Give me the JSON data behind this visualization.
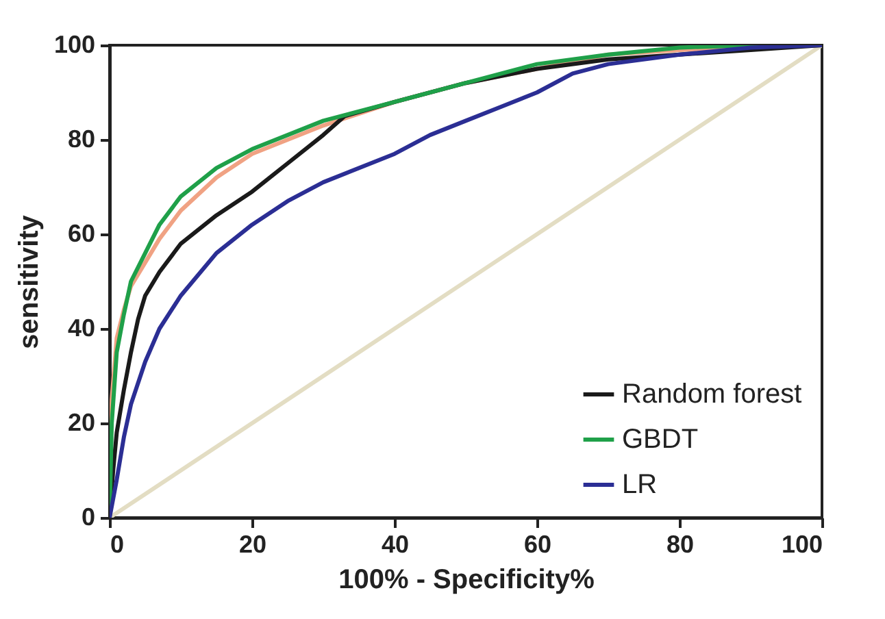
{
  "chart_data": {
    "type": "line",
    "xlabel": "100%  - Specificity%",
    "ylabel": "sensitivity",
    "xlim": [
      0,
      100
    ],
    "ylim": [
      0,
      100
    ],
    "xticks": [
      0,
      20,
      40,
      60,
      80,
      100
    ],
    "yticks": [
      0,
      20,
      40,
      60,
      80,
      100
    ],
    "grid": false,
    "legend": "bottom right",
    "marker": "none",
    "line_style": "solid",
    "series": [
      {
        "name": "Random forest",
        "color": "#1a1a1a",
        "x": [
          0,
          0.5,
          1,
          2,
          3,
          4,
          5,
          7,
          10,
          15,
          20,
          25,
          30,
          33,
          40,
          50,
          60,
          70,
          80,
          90,
          100
        ],
        "values": [
          0,
          10,
          18,
          27,
          35,
          42,
          47,
          52,
          58,
          64,
          69,
          75,
          81,
          85,
          88,
          92,
          95,
          97,
          98,
          99,
          100
        ]
      },
      {
        "name": "GBDT",
        "color": "#1fa049",
        "x": [
          0,
          0.3,
          1,
          2,
          3,
          5,
          7,
          10,
          15,
          20,
          25,
          30,
          40,
          50,
          60,
          70,
          80,
          90,
          100
        ],
        "values": [
          0,
          20,
          35,
          43,
          50,
          56,
          62,
          68,
          74,
          78,
          81,
          84,
          88,
          92,
          96,
          98,
          99.5,
          100,
          100
        ]
      },
      {
        "color": "#f0a283",
        "x": [
          0,
          0.3,
          1,
          2,
          3,
          5,
          7,
          10,
          15,
          20,
          25,
          30,
          40,
          50,
          60,
          70,
          80,
          100
        ],
        "values": [
          0,
          25,
          38,
          44,
          49,
          54,
          59,
          65,
          72,
          77,
          80,
          83,
          88,
          92,
          95,
          98,
          99,
          100
        ]
      },
      {
        "name": "LR",
        "color": "#2b2e94",
        "x": [
          0,
          1,
          2,
          3,
          5,
          7,
          10,
          15,
          20,
          25,
          30,
          40,
          45,
          50,
          55,
          60,
          65,
          70,
          80,
          90,
          100
        ],
        "values": [
          0,
          8,
          17,
          24,
          33,
          40,
          47,
          56,
          62,
          67,
          71,
          77,
          81,
          84,
          87,
          90,
          94,
          96,
          98,
          99.5,
          100
        ]
      },
      {
        "color": "#e3ddc3",
        "x": [
          0,
          100
        ],
        "values": [
          0,
          100
        ]
      }
    ]
  }
}
